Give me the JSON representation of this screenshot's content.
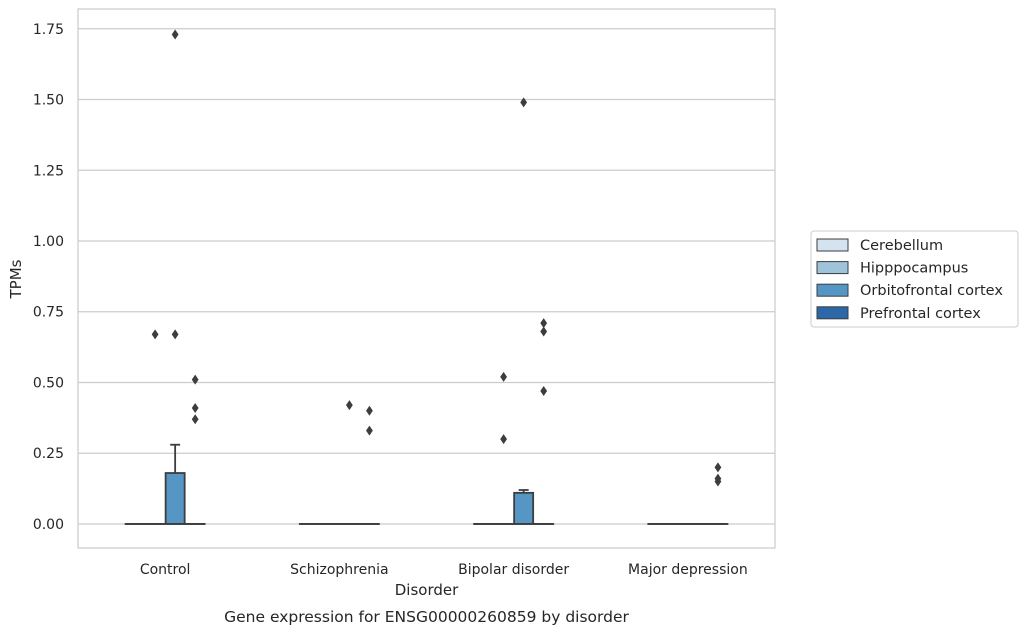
{
  "chart_data": {
    "type": "box",
    "title": "Gene expression for ENSG00000260859 by disorder",
    "xlabel": "Disorder",
    "ylabel": "TPMs",
    "ylim": [
      -0.085,
      1.82
    ],
    "yticks": [
      0.0,
      0.25,
      0.5,
      0.75,
      1.0,
      1.25,
      1.5,
      1.75
    ],
    "ytick_labels": [
      "0.00",
      "0.25",
      "0.50",
      "0.75",
      "1.00",
      "1.25",
      "1.50",
      "1.75"
    ],
    "grid": true,
    "legend_position": "right",
    "categories": [
      "Control",
      "Schizophrenia",
      "Bipolar disorder",
      "Major depression"
    ],
    "series": [
      {
        "name": "Cerebellum",
        "color": "#d3e3ef",
        "boxes": [
          {
            "q1": 0,
            "median": 0,
            "q3": 0,
            "whisker_low": 0,
            "whisker_high": 0,
            "outliers": []
          },
          {
            "q1": 0,
            "median": 0,
            "q3": 0,
            "whisker_low": 0,
            "whisker_high": 0,
            "outliers": []
          },
          {
            "q1": 0,
            "median": 0,
            "q3": 0,
            "whisker_low": 0,
            "whisker_high": 0,
            "outliers": []
          },
          {
            "q1": 0,
            "median": 0,
            "q3": 0,
            "whisker_low": 0,
            "whisker_high": 0,
            "outliers": []
          }
        ]
      },
      {
        "name": "Hipppocampus",
        "color": "#9ec3db",
        "boxes": [
          {
            "q1": 0,
            "median": 0,
            "q3": 0,
            "whisker_low": 0,
            "whisker_high": 0,
            "outliers": [
              0.67
            ]
          },
          {
            "q1": 0,
            "median": 0,
            "q3": 0,
            "whisker_low": 0,
            "whisker_high": 0,
            "outliers": []
          },
          {
            "q1": 0,
            "median": 0,
            "q3": 0,
            "whisker_low": 0,
            "whisker_high": 0,
            "outliers": [
              0.52,
              0.3
            ]
          },
          {
            "q1": 0,
            "median": 0,
            "q3": 0,
            "whisker_low": 0,
            "whisker_high": 0,
            "outliers": []
          }
        ]
      },
      {
        "name": "Orbitofrontal cortex",
        "color": "#5596c4",
        "boxes": [
          {
            "q1": 0,
            "median": 0,
            "q3": 0.18,
            "whisker_low": 0,
            "whisker_high": 0.28,
            "outliers": [
              1.73,
              0.67
            ]
          },
          {
            "q1": 0,
            "median": 0,
            "q3": 0,
            "whisker_low": 0,
            "whisker_high": 0,
            "outliers": [
              0.42
            ]
          },
          {
            "q1": 0,
            "median": 0,
            "q3": 0.11,
            "whisker_low": 0,
            "whisker_high": 0.12,
            "outliers": [
              1.49
            ]
          },
          {
            "q1": 0,
            "median": 0,
            "q3": 0,
            "whisker_low": 0,
            "whisker_high": 0,
            "outliers": []
          }
        ]
      },
      {
        "name": "Prefrontal cortex",
        "color": "#2c68a8",
        "boxes": [
          {
            "q1": 0,
            "median": 0,
            "q3": 0,
            "whisker_low": 0,
            "whisker_high": 0,
            "outliers": [
              0.51,
              0.41,
              0.37
            ]
          },
          {
            "q1": 0,
            "median": 0,
            "q3": 0,
            "whisker_low": 0,
            "whisker_high": 0,
            "outliers": [
              0.4,
              0.33
            ]
          },
          {
            "q1": 0,
            "median": 0,
            "q3": 0,
            "whisker_low": 0,
            "whisker_high": 0,
            "outliers": [
              0.71,
              0.68,
              0.47
            ]
          },
          {
            "q1": 0,
            "median": 0,
            "q3": 0,
            "whisker_low": 0,
            "whisker_high": 0,
            "outliers": [
              0.2,
              0.16,
              0.15
            ]
          }
        ]
      }
    ]
  }
}
